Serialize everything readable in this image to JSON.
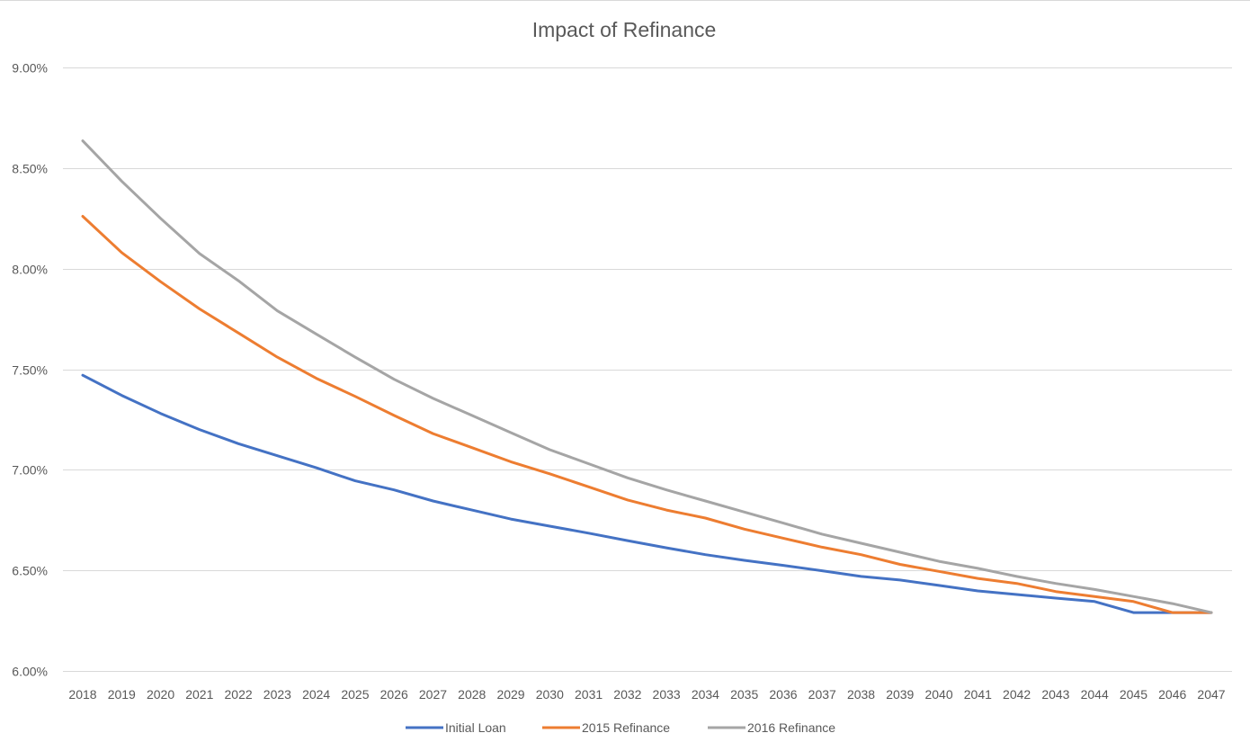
{
  "chart_data": {
    "type": "line",
    "title": "Impact of Refinance",
    "xlabel": "",
    "ylabel": "",
    "categories": [
      "2018",
      "2019",
      "2020",
      "2021",
      "2022",
      "2023",
      "2024",
      "2025",
      "2026",
      "2027",
      "2028",
      "2029",
      "2030",
      "2031",
      "2032",
      "2033",
      "2034",
      "2035",
      "2036",
      "2037",
      "2038",
      "2039",
      "2040",
      "2041",
      "2042",
      "2043",
      "2044",
      "2045",
      "2046",
      "2047"
    ],
    "ylim": [
      6.0,
      9.0
    ],
    "yticks": [
      6.0,
      6.5,
      7.0,
      7.5,
      8.0,
      8.5,
      9.0
    ],
    "ytick_labels": [
      "6.00%",
      "6.50%",
      "7.00%",
      "7.50%",
      "8.00%",
      "8.50%",
      "9.00%"
    ],
    "grid": true,
    "legend_position": "bottom",
    "series": [
      {
        "name": "Initial Loan",
        "color": "#4472c4",
        "values": [
          7.47,
          7.37,
          7.28,
          7.2,
          7.13,
          7.07,
          7.01,
          6.945,
          6.9,
          6.845,
          6.8,
          6.755,
          6.72,
          6.685,
          6.648,
          6.612,
          6.578,
          6.55,
          6.525,
          6.498,
          6.47,
          6.452,
          6.425,
          6.398,
          6.38,
          6.362,
          6.345,
          6.29,
          6.29,
          6.29
        ]
      },
      {
        "name": "2015 Refinance",
        "color": "#ed7d31",
        "values": [
          8.26,
          8.08,
          7.935,
          7.8,
          7.68,
          7.56,
          7.455,
          7.365,
          7.27,
          7.18,
          7.11,
          7.04,
          6.98,
          6.915,
          6.85,
          6.8,
          6.76,
          6.705,
          6.66,
          6.615,
          6.578,
          6.53,
          6.495,
          6.46,
          6.435,
          6.395,
          6.37,
          6.345,
          6.29,
          6.29
        ]
      },
      {
        "name": "2016 Refinance",
        "color": "#a5a5a5",
        "values": [
          8.635,
          8.435,
          8.25,
          8.075,
          7.94,
          7.79,
          7.675,
          7.56,
          7.45,
          7.355,
          7.27,
          7.185,
          7.1,
          7.03,
          6.96,
          6.9,
          6.845,
          6.79,
          6.735,
          6.68,
          6.635,
          6.59,
          6.545,
          6.51,
          6.47,
          6.435,
          6.405,
          6.37,
          6.335,
          6.29
        ]
      }
    ]
  }
}
